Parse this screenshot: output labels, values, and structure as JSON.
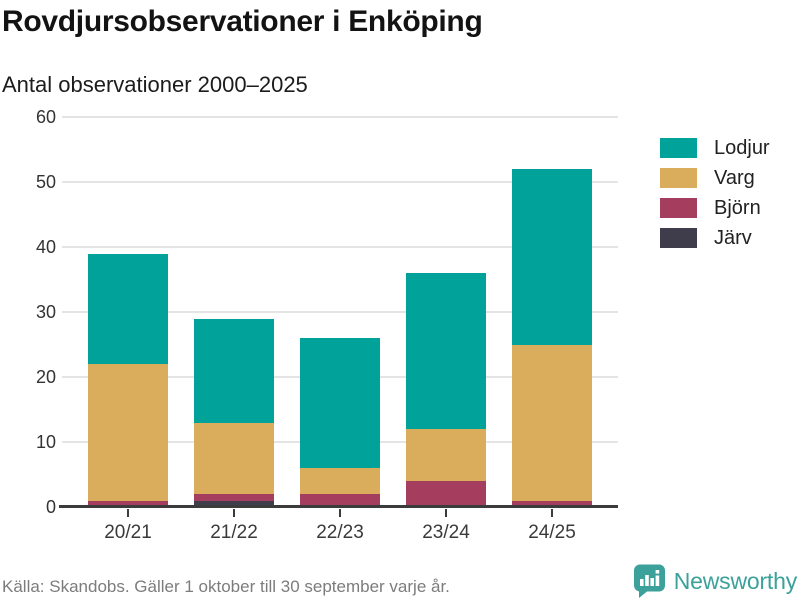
{
  "title": "Rovdjursobservationer i Enköping",
  "subtitle": "Antal observationer 2000–2025",
  "footer": {
    "source": "Källa: Skandobs. Gäller 1 oktober till 30 september varje år.",
    "brand": "Newsworthy",
    "brand_icon": "speech-bubble-bar-chart-icon",
    "brand_color": "#3ba19a"
  },
  "colors": {
    "lodjur_teal": "#00a29a",
    "varg_gold": "#d9ad5c",
    "bjorn_maroon": "#a53d5f",
    "jarv_dark": "#3f3d4c",
    "gridline": "#e4e4e4",
    "axis": "#3b3b3b",
    "title_text": "#131313",
    "muted_text": "#7c7c7c"
  },
  "chart_data": {
    "type": "bar",
    "stacked": true,
    "title": "Rovdjursobservationer i Enköping",
    "subtitle": "Antal observationer 2000–2025",
    "categories": [
      "20/21",
      "21/22",
      "22/23",
      "23/24",
      "24/25"
    ],
    "series": [
      {
        "name": "Lodjur",
        "color": "#00a29a",
        "values": [
          17,
          16,
          20,
          24,
          27
        ]
      },
      {
        "name": "Varg",
        "color": "#d9ad5c",
        "values": [
          21,
          11,
          4,
          8,
          24
        ]
      },
      {
        "name": "Björn",
        "color": "#a53d5f",
        "values": [
          1,
          1,
          2,
          4,
          1
        ]
      },
      {
        "name": "Järv",
        "color": "#3f3d4c",
        "values": [
          0,
          1,
          0,
          0,
          0
        ]
      }
    ],
    "stack_order_bottom_to_top": [
      "Järv",
      "Björn",
      "Varg",
      "Lodjur"
    ],
    "totals": [
      39,
      29,
      26,
      36,
      52
    ],
    "xlabel": "",
    "ylabel": "",
    "ylim": [
      0,
      60
    ],
    "yticks": [
      0,
      10,
      20,
      30,
      40,
      50,
      60
    ],
    "grid": true,
    "legend_position": "right"
  }
}
